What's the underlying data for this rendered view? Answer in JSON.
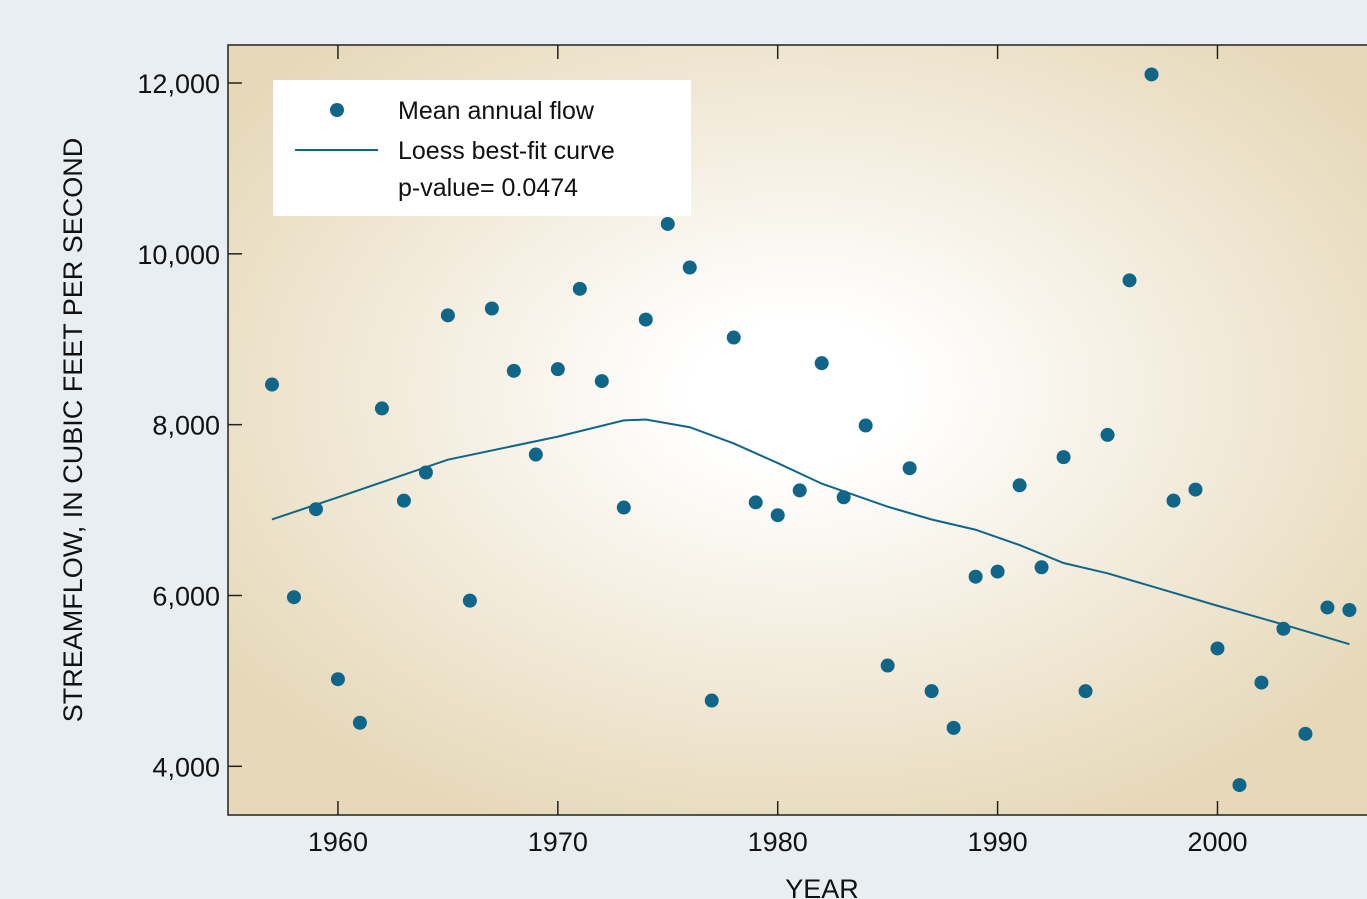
{
  "chart_data": {
    "type": "scatter",
    "x_label": "YEAR",
    "y_label": "STREAMFLOW, IN CUBIC FEET PER SECOND",
    "annotation": "p-value= 0.0474",
    "xlim": [
      1955,
      2006.8
    ],
    "ylim": [
      3430,
      12445
    ],
    "xticks": [
      1960,
      1970,
      1980,
      1990,
      2000
    ],
    "yticks": [
      {
        "value": 4000,
        "label": "4,000"
      },
      {
        "value": 6000,
        "label": "6,000"
      },
      {
        "value": 8000,
        "label": "8,000"
      },
      {
        "value": 10000,
        "label": "10,000"
      },
      {
        "value": 12000,
        "label": "12,000"
      }
    ],
    "series": [
      {
        "name": "Mean annual flow",
        "type": "scatter",
        "color": "#0f6688",
        "x": [
          1957,
          1958,
          1959,
          1960,
          1961,
          1962,
          1963,
          1964,
          1965,
          1966,
          1967,
          1968,
          1969,
          1970,
          1971,
          1972,
          1973,
          1974,
          1975,
          1976,
          1977,
          1978,
          1979,
          1980,
          1981,
          1982,
          1983,
          1984,
          1985,
          1986,
          1987,
          1988,
          1989,
          1990,
          1991,
          1992,
          1993,
          1994,
          1995,
          1996,
          1997,
          1998,
          1999,
          2000,
          2001,
          2002,
          2003,
          2004,
          2005,
          2006
        ],
        "values": [
          8470,
          5980,
          7010,
          5020,
          4510,
          8190,
          7110,
          7440,
          9280,
          5940,
          9360,
          8630,
          7650,
          8650,
          9590,
          8510,
          7030,
          9230,
          10350,
          9840,
          4770,
          9020,
          7090,
          6940,
          7230,
          8720,
          7150,
          7990,
          5180,
          7490,
          4880,
          4450,
          6220,
          6280,
          7290,
          6330,
          7620,
          4880,
          7880,
          9690,
          12100,
          7110,
          7240,
          5380,
          3780,
          4980,
          5610,
          4380,
          5860,
          5830
        ]
      },
      {
        "name": "Loess best-fit curve",
        "type": "line",
        "color": "#0f6688",
        "x": [
          1957,
          1960,
          1965,
          1970,
          1973,
          1974,
          1976,
          1978,
          1980,
          1982,
          1983,
          1985,
          1987,
          1989,
          1991,
          1993,
          1995,
          2000,
          2003,
          2006
        ],
        "values": [
          6890,
          7150,
          7590,
          7860,
          8050,
          8060,
          7970,
          7780,
          7550,
          7310,
          7220,
          7040,
          6890,
          6770,
          6590,
          6380,
          6260,
          5880,
          5660,
          5430
        ]
      }
    ]
  }
}
